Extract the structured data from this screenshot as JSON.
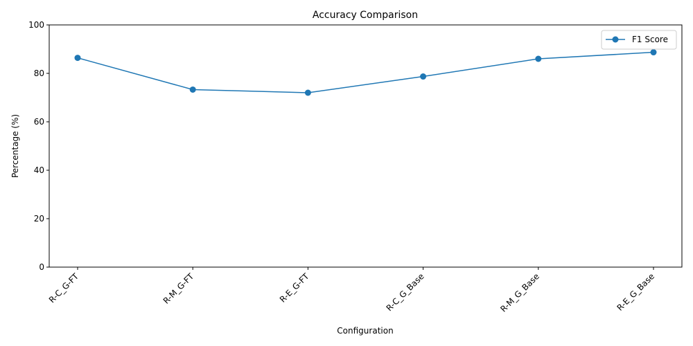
{
  "chart_data": {
    "type": "line",
    "title": "Accuracy Comparison",
    "xlabel": "Configuration",
    "ylabel": "Percentage (%)",
    "categories": [
      "R-C_G-FT",
      "R-M_G-FT",
      "R-E_G-FT",
      "R-C_G_Base",
      "R-M_G_Base",
      "R-E_G_Base"
    ],
    "series": [
      {
        "name": "F1 Score",
        "values": [
          86.4,
          73.3,
          72.0,
          78.7,
          86.0,
          88.7
        ],
        "color": "#1f77b4",
        "marker": "circle"
      }
    ],
    "ylim": [
      0,
      100
    ],
    "yticks": [
      0,
      20,
      40,
      60,
      80,
      100
    ],
    "grid": false,
    "legend_position": "top-right"
  }
}
